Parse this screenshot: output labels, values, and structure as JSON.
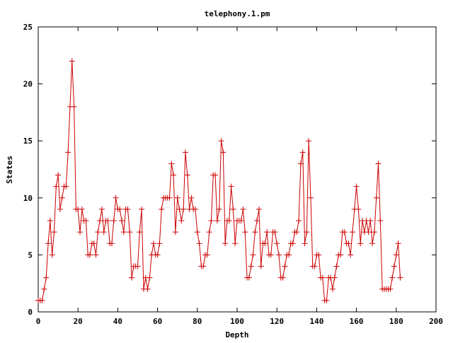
{
  "chart_data": {
    "type": "line",
    "title": "telephony.1.pm",
    "xlabel": "Depth",
    "ylabel": "States",
    "xlim": [
      0,
      200
    ],
    "ylim": [
      0,
      25
    ],
    "x_ticks": [
      0,
      20,
      40,
      60,
      80,
      100,
      120,
      140,
      160,
      180,
      200
    ],
    "y_ticks": [
      0,
      5,
      10,
      15,
      20,
      25
    ],
    "grid": false,
    "legend": "none",
    "marker": "plus",
    "series": [
      {
        "color": "#cc0000",
        "x": [
          0,
          1,
          2,
          3,
          4,
          5,
          6,
          7,
          8,
          9,
          10,
          11,
          12,
          13,
          14,
          15,
          16,
          17,
          18,
          19,
          20,
          21,
          22,
          23,
          24,
          25,
          26,
          27,
          28,
          29,
          30,
          31,
          32,
          33,
          34,
          35,
          36,
          37,
          38,
          39,
          40,
          41,
          42,
          43,
          44,
          45,
          46,
          47,
          48,
          49,
          50,
          51,
          52,
          53,
          54,
          55,
          56,
          57,
          58,
          59,
          60,
          61,
          62,
          63,
          64,
          65,
          66,
          67,
          68,
          69,
          70,
          71,
          72,
          73,
          74,
          75,
          76,
          77,
          78,
          79,
          80,
          81,
          82,
          83,
          84,
          85,
          86,
          87,
          88,
          89,
          90,
          91,
          92,
          93,
          94,
          95,
          96,
          97,
          98,
          99,
          100,
          101,
          102,
          103,
          104,
          105,
          106,
          107,
          108,
          109,
          110,
          111,
          112,
          113,
          114,
          115,
          116,
          117,
          118,
          119,
          120,
          121,
          122,
          123,
          124,
          125,
          126,
          127,
          128,
          129,
          130,
          131,
          132,
          133,
          134,
          135,
          136,
          137,
          138,
          139,
          140,
          141,
          142,
          143,
          144,
          145,
          146,
          147,
          148,
          149,
          150,
          151,
          152,
          153,
          154,
          155,
          156,
          157,
          158,
          159,
          160,
          161,
          162,
          163,
          164,
          165,
          166,
          167,
          168,
          169,
          170,
          171,
          172,
          173,
          174,
          175,
          176,
          177,
          178,
          179,
          180,
          181,
          182
        ],
        "y": [
          1,
          1,
          1,
          2,
          3,
          6,
          8,
          5,
          7,
          11,
          12,
          9,
          10,
          11,
          11,
          14,
          18,
          22,
          18,
          9,
          9,
          7,
          9,
          8,
          8,
          5,
          5,
          6,
          6,
          5,
          7,
          8,
          9,
          7,
          8,
          8,
          6,
          6,
          8,
          10,
          9,
          9,
          8,
          7,
          9,
          9,
          7,
          3,
          4,
          4,
          4,
          7,
          9,
          2,
          3,
          2,
          3,
          5,
          6,
          5,
          5,
          6,
          9,
          10,
          10,
          10,
          10,
          13,
          12,
          7,
          10,
          9,
          8,
          9,
          14,
          12,
          9,
          10,
          9,
          9,
          7,
          6,
          4,
          4,
          5,
          5,
          7,
          8,
          12,
          12,
          8,
          9,
          15,
          14,
          6,
          8,
          8,
          11,
          9,
          6,
          8,
          8,
          8,
          9,
          7,
          3,
          3,
          4,
          5,
          7,
          8,
          9,
          4,
          6,
          6,
          7,
          5,
          5,
          7,
          7,
          6,
          5,
          3,
          3,
          4,
          5,
          5,
          6,
          6,
          7,
          7,
          8,
          13,
          14,
          6,
          7,
          15,
          10,
          4,
          4,
          5,
          5,
          3,
          3,
          1,
          1,
          3,
          3,
          2,
          3,
          4,
          5,
          5,
          7,
          7,
          6,
          6,
          5,
          7,
          9,
          11,
          9,
          6,
          8,
          7,
          8,
          7,
          8,
          6,
          7,
          10,
          13,
          8,
          2,
          2,
          2,
          2,
          2,
          3,
          4,
          5,
          6,
          3
        ]
      }
    ]
  }
}
